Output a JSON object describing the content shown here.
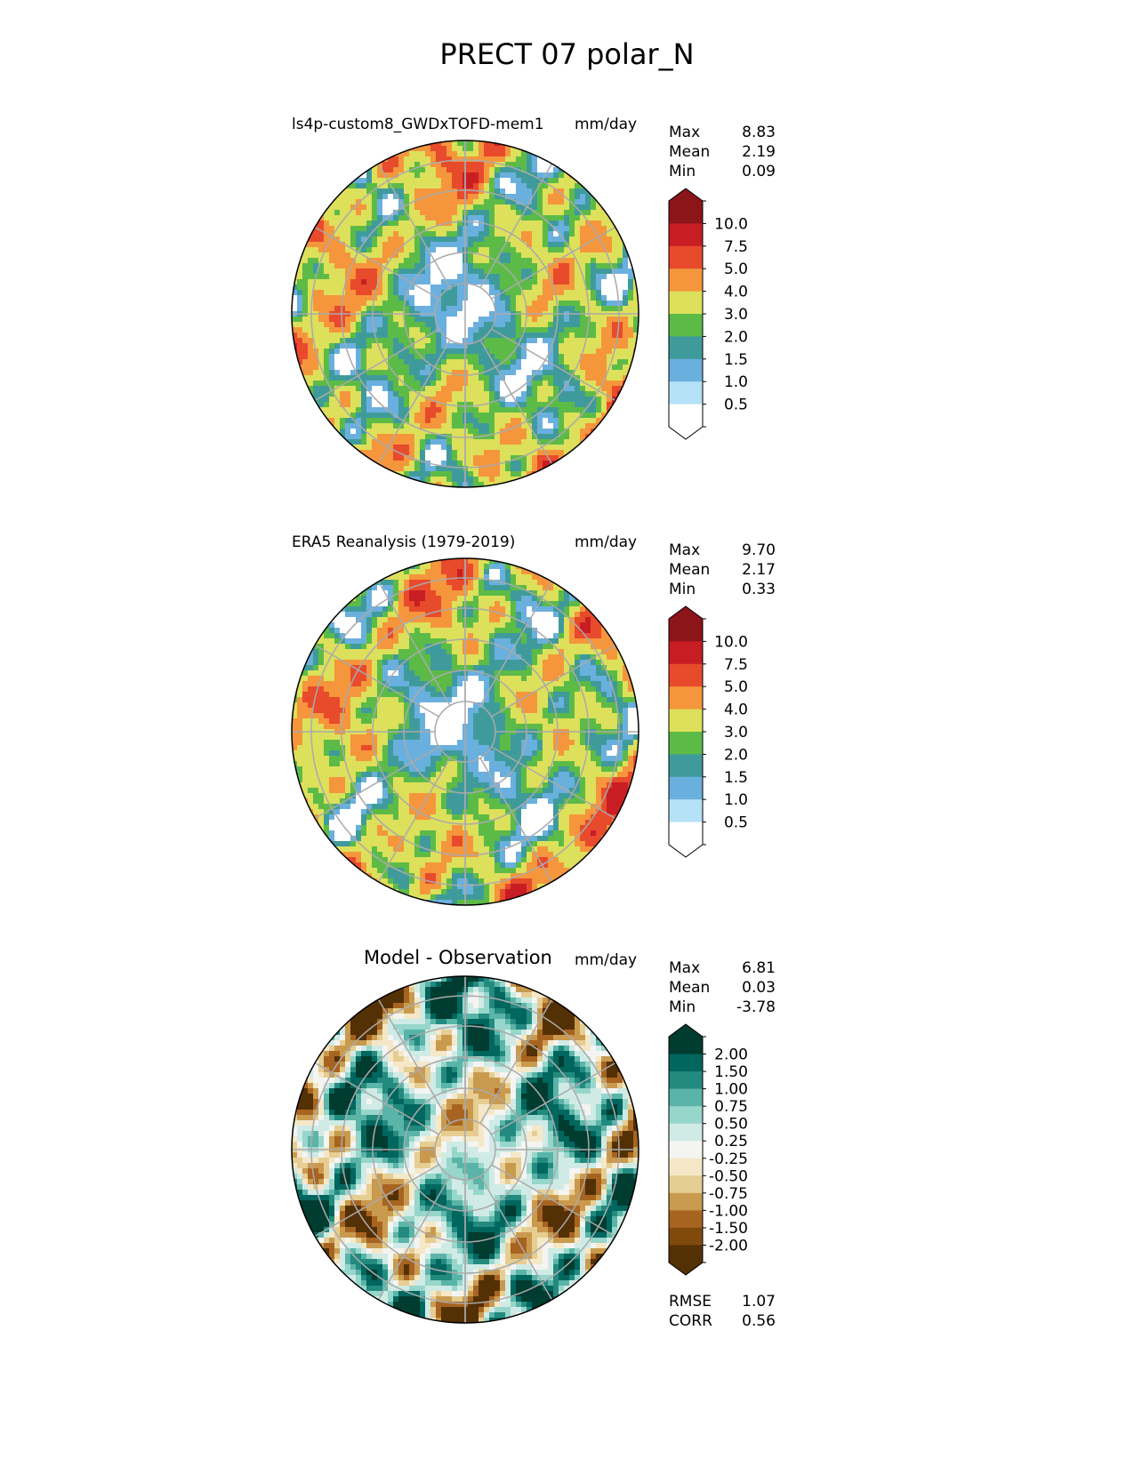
{
  "figure_title": "PRECT 07 polar_N",
  "panels": [
    {
      "title": "ls4p-custom8_GWDxTOFD-mem1",
      "units": "mm/day",
      "stats": {
        "max_label": "Max",
        "max": "8.83",
        "mean_label": "Mean",
        "mean": "2.19",
        "min_label": "Min",
        "min": "0.09"
      },
      "colorbar": {
        "levels": [
          "10.0",
          "7.5",
          "5.0",
          "4.0",
          "3.0",
          "2.0",
          "1.5",
          "1.0",
          "0.5"
        ],
        "colors": [
          "#8c1519",
          "#8c1519",
          "#c91d24",
          "#e84a2c",
          "#f5963c",
          "#dde05a",
          "#5cbb47",
          "#3f9b9b",
          "#6ab0de",
          "#b5e2f7",
          "#ffffff",
          "#ffffff"
        ]
      }
    },
    {
      "title": "ERA5 Reanalysis (1979-2019)",
      "units": "mm/day",
      "stats": {
        "max_label": "Max",
        "max": "9.70",
        "mean_label": "Mean",
        "mean": "2.17",
        "min_label": "Min",
        "min": "0.33"
      },
      "colorbar": {
        "levels": [
          "10.0",
          "7.5",
          "5.0",
          "4.0",
          "3.0",
          "2.0",
          "1.5",
          "1.0",
          "0.5"
        ],
        "colors": [
          "#8c1519",
          "#8c1519",
          "#c91d24",
          "#e84a2c",
          "#f5963c",
          "#dde05a",
          "#5cbb47",
          "#3f9b9b",
          "#6ab0de",
          "#b5e2f7",
          "#ffffff",
          "#ffffff"
        ]
      }
    },
    {
      "title": "Model - Observation",
      "units": "mm/day",
      "stats": {
        "max_label": "Max",
        "max": "6.81",
        "mean_label": "Mean",
        "mean": "0.03",
        "min_label": "Min",
        "min": "-3.78"
      },
      "colorbar": {
        "levels": [
          "2.00",
          "1.50",
          "1.00",
          "0.75",
          "0.50",
          "0.25",
          "-0.25",
          "-0.50",
          "-0.75",
          "-1.00",
          "-1.50",
          "-2.00"
        ],
        "colors": [
          "#003c30",
          "#003c30",
          "#01665e",
          "#238a7f",
          "#5ab4a8",
          "#97d6cb",
          "#d0ebe6",
          "#f4f4f2",
          "#f5e8c8",
          "#e6cd92",
          "#c99a4e",
          "#a76420",
          "#804a0d",
          "#543005",
          "#543005"
        ]
      },
      "metrics": {
        "rmse_label": "RMSE",
        "rmse": "1.07",
        "corr_label": "CORR",
        "corr": "0.56"
      }
    }
  ]
}
